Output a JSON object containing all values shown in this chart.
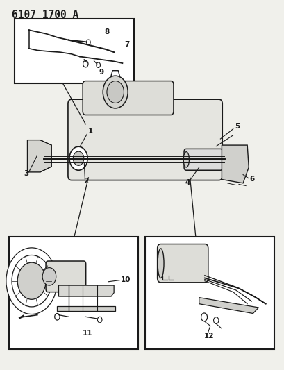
{
  "title": "6107 1700 A",
  "bg_color": "#f0f0eb",
  "line_color": "#1a1a1a",
  "figsize": [
    4.1,
    5.33
  ],
  "dpi": 100
}
